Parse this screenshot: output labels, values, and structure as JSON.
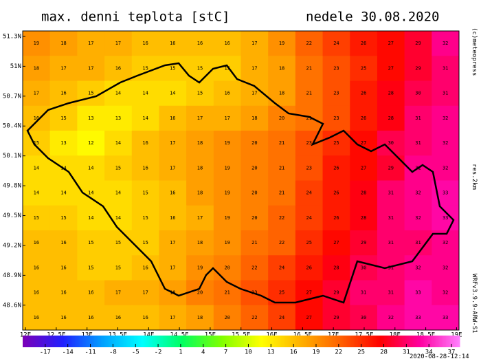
{
  "chart_data": {
    "type": "heatmap",
    "title": "max. denni teplota [stC]",
    "subtitle": "nedele 30.08.2020",
    "copyright": "(c)meteopress",
    "resolution": "res.2km",
    "model": "WRFv3.9.9-ARW-S1",
    "timestamp": "2020-08-28-12:14",
    "xlim": [
      11.955,
      19.04
    ],
    "ylim": [
      48.35,
      51.355
    ],
    "xticks": [
      {
        "value": 12,
        "label": "12E"
      },
      {
        "value": 12.5,
        "label": "12.5E"
      },
      {
        "value": 13,
        "label": "13E"
      },
      {
        "value": 13.5,
        "label": "13.5E"
      },
      {
        "value": 14,
        "label": "14E"
      },
      {
        "value": 14.5,
        "label": "14.5E"
      },
      {
        "value": 15,
        "label": "15E"
      },
      {
        "value": 15.5,
        "label": "15.5E"
      },
      {
        "value": 16,
        "label": "16E"
      },
      {
        "value": 16.5,
        "label": "16.5E"
      },
      {
        "value": 17,
        "label": "17E"
      },
      {
        "value": 17.5,
        "label": "17.5E"
      },
      {
        "value": 18,
        "label": "18E"
      },
      {
        "value": 18.5,
        "label": "18.5E"
      },
      {
        "value": 19,
        "label": "19E"
      }
    ],
    "yticks": [
      {
        "value": 51.3,
        "label": "51.3N"
      },
      {
        "value": 51,
        "label": "51N"
      },
      {
        "value": 50.7,
        "label": "50.7N"
      },
      {
        "value": 50.4,
        "label": "50.4N"
      },
      {
        "value": 50.1,
        "label": "50.1N"
      },
      {
        "value": 49.8,
        "label": "49.8N"
      },
      {
        "value": 49.5,
        "label": "49.5N"
      },
      {
        "value": 49.2,
        "label": "49.2N"
      },
      {
        "value": 48.9,
        "label": "48.9N"
      },
      {
        "value": 48.6,
        "label": "48.6N"
      }
    ],
    "values": [
      [
        19,
        18,
        17,
        17,
        16,
        16,
        16,
        16,
        17,
        19,
        22,
        24,
        26,
        27,
        29,
        32
      ],
      [
        18,
        17,
        17,
        16,
        15,
        15,
        15,
        15,
        17,
        18,
        21,
        23,
        25,
        27,
        29,
        31
      ],
      [
        17,
        16,
        15,
        14,
        14,
        14,
        15,
        16,
        17,
        18,
        21,
        23,
        26,
        28,
        30,
        31
      ],
      [
        16,
        15,
        13,
        13,
        14,
        16,
        17,
        17,
        18,
        20,
        21,
        23,
        26,
        28,
        31,
        32
      ],
      [
        15,
        13,
        12,
        14,
        16,
        17,
        18,
        19,
        20,
        21,
        23,
        25,
        27,
        30,
        31,
        32
      ],
      [
        14,
        14,
        14,
        15,
        16,
        17,
        18,
        19,
        20,
        21,
        23,
        26,
        27,
        29,
        32,
        32
      ],
      [
        14,
        14,
        14,
        14,
        15,
        16,
        18,
        19,
        20,
        21,
        24,
        26,
        28,
        31,
        32,
        33
      ],
      [
        15,
        15,
        14,
        14,
        15,
        16,
        17,
        19,
        20,
        22,
        24,
        26,
        28,
        31,
        32,
        33
      ],
      [
        16,
        16,
        15,
        15,
        15,
        17,
        18,
        19,
        21,
        22,
        25,
        27,
        29,
        31,
        31,
        32
      ],
      [
        16,
        16,
        15,
        15,
        16,
        17,
        19,
        20,
        22,
        24,
        26,
        28,
        30,
        31,
        32,
        32
      ],
      [
        16,
        16,
        16,
        17,
        17,
        18,
        20,
        21,
        23,
        25,
        27,
        29,
        31,
        31,
        33,
        32
      ],
      [
        16,
        16,
        16,
        16,
        16,
        17,
        18,
        20,
        22,
        24,
        27,
        29,
        30,
        32,
        33,
        33
      ]
    ],
    "clim": [
      -20,
      38
    ],
    "colors": [
      "#7a00b8",
      "#2020ff",
      "#00a0ff",
      "#00ffff",
      "#00ff60",
      "#80ff00",
      "#ffff00",
      "#ffb000",
      "#ff6000",
      "#ff0000",
      "#ff00a0",
      "#ff80ff"
    ],
    "cbticks": [
      -17,
      -14,
      -11,
      -8,
      -5,
      -2,
      1,
      4,
      7,
      10,
      13,
      16,
      19,
      22,
      25,
      28,
      31,
      34,
      37
    ]
  }
}
